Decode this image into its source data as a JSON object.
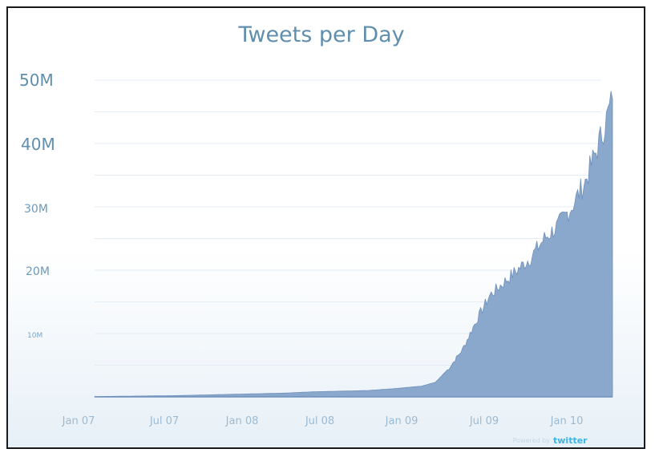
{
  "chart_data": {
    "type": "area",
    "title": "Tweets per Day",
    "xlabel": "",
    "ylabel": "",
    "x_ticks": [
      "Jan 07",
      "Jul 07",
      "Jan 08",
      "Jul 08",
      "Jan 09",
      "Jul 09",
      "Jan 10"
    ],
    "y_ticks": [
      "50M",
      "40M",
      "30M",
      "20M",
      "10M"
    ],
    "ylim": [
      0,
      50
    ],
    "y_unit": "M",
    "grid": true,
    "fill_color": "#8aa8cc",
    "line_color": "#6f8fbc",
    "series": [
      {
        "x": [
          "2007-01",
          "2007-03",
          "2007-05",
          "2007-07",
          "2007-09",
          "2007-11",
          "2008-01",
          "2008-03",
          "2008-05",
          "2008-07",
          "2008-09",
          "2008-11",
          "2009-01",
          "2009-02",
          "2009-03",
          "2009-04",
          "2009-05",
          "2009-06",
          "2009-07",
          "2009-08",
          "2009-09",
          "2009-10",
          "2009-11",
          "2009-12",
          "2010-01",
          "2010-02",
          "2010-03"
        ],
        "values": [
          0.05,
          0.1,
          0.15,
          0.2,
          0.3,
          0.4,
          0.5,
          0.6,
          0.8,
          0.9,
          1.0,
          1.3,
          1.7,
          2.3,
          4.5,
          7.5,
          12,
          16,
          18,
          20,
          22,
          25,
          27,
          30,
          34,
          40,
          47
        ]
      }
    ]
  },
  "credit": {
    "prefix": "Powered by",
    "brand": "twitter"
  }
}
